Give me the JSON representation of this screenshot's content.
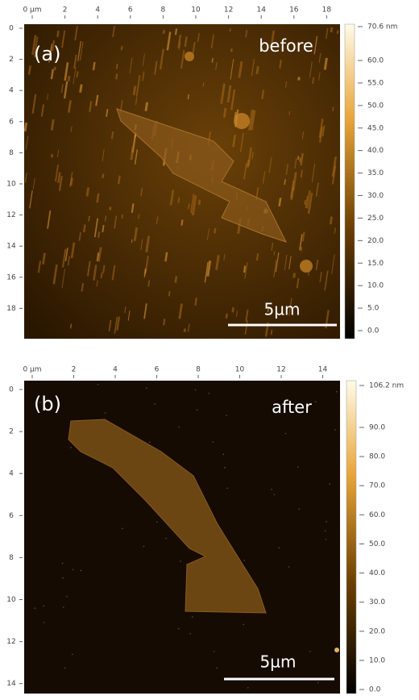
{
  "panels": [
    {
      "label": "(a)",
      "condition": "before",
      "scale_bar": "5µm",
      "x_ticks": [
        "0 µm",
        "2",
        "4",
        "6",
        "8",
        "10",
        "12",
        "14",
        "16",
        "18"
      ],
      "y_ticks": [
        "0",
        "2",
        "4",
        "6",
        "8",
        "10",
        "12",
        "14",
        "16",
        "18"
      ],
      "colorbar_ticks": [
        "70.6 nm",
        "60.0",
        "55.0",
        "50.0",
        "45.0",
        "40.0",
        "35.0",
        "30.0",
        "25.0",
        "20.0",
        "15.0",
        "10.0",
        "5.0",
        "0.0"
      ]
    },
    {
      "label": "(b)",
      "condition": "after",
      "scale_bar": "5µm",
      "x_ticks": [
        "0 µm",
        "2",
        "4",
        "6",
        "8",
        "10",
        "12",
        "14"
      ],
      "y_ticks": [
        "0",
        "2",
        "4",
        "6",
        "8",
        "10",
        "12",
        "14"
      ],
      "colorbar_ticks": [
        "106.2 nm",
        "90.0",
        "80.0",
        "70.0",
        "60.0",
        "50.0",
        "40.0",
        "30.0",
        "20.0",
        "10.0",
        "0.0"
      ]
    }
  ]
}
